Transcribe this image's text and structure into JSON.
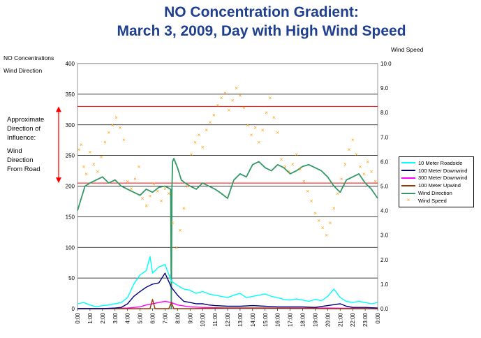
{
  "header": {
    "title_line1": "NO Concentration Gradient:",
    "title_line2": "March 3, 2009, Day with High Wind Speed"
  },
  "axes": {
    "left_title_line1": "NO Concentrations",
    "left_title_line2": "Wind Direction",
    "right_title": "Wind Speed"
  },
  "annotation": {
    "line1": "Approximate",
    "line2": "Direction of",
    "line3": "Influence:",
    "line4": "Wind",
    "line5": "Direction",
    "line6": "From Road"
  },
  "colors": {
    "title": "#1f3f8f",
    "roadside10": "#00ffff",
    "downwind100": "#000080",
    "downwind300": "#ff00ff",
    "upwind100": "#993300",
    "wind_direction": "#339966",
    "wind_speed": "#ff9900",
    "reference_line": "#ff0000",
    "grid": "#000000"
  },
  "chart_data": {
    "type": "line",
    "title": "NO Concentration Gradient: March 3, 2009, Day with High Wind Speed",
    "ylabel_left": "NO Concentrations / Wind Direction",
    "ylabel_right": "Wind Speed",
    "ylim_left": [
      0,
      400
    ],
    "ylim_right": [
      0,
      10
    ],
    "yticks_left": [
      "0",
      "50",
      "100",
      "150",
      "200",
      "250",
      "300",
      "350",
      "400"
    ],
    "yticks_right": [
      "0.0",
      "1.0",
      "2.0",
      "3.0",
      "4.0",
      "5.0",
      "6.0",
      "7.0",
      "8.0",
      "9.0",
      "10.0"
    ],
    "xticks": [
      "0:00",
      "1:00",
      "2:00",
      "3:00",
      "4:00",
      "5:00",
      "6:00",
      "7:00",
      "8:00",
      "9:00",
      "10:00",
      "11:00",
      "12:00",
      "13:00",
      "14:00",
      "15:00",
      "16:00",
      "17:00",
      "18:00",
      "19:00",
      "20:00",
      "21:00",
      "22:00",
      "23:00",
      "0:00"
    ],
    "grid": "horizontal",
    "legend_position": "right",
    "reference_lines": [
      {
        "axis": "left",
        "value": 330,
        "color": "#ff0000"
      },
      {
        "axis": "left",
        "value": 205,
        "color": "#ff0000"
      }
    ],
    "influence_range": [
      205,
      330
    ],
    "series": [
      {
        "name": "10 Meter Roadside",
        "axis": "left",
        "style": "line",
        "color": "#00ffff",
        "x": [
          0,
          0.5,
          1,
          1.5,
          2,
          2.5,
          3,
          3.5,
          4,
          4.5,
          5,
          5.5,
          5.8,
          6,
          6.5,
          7,
          7.5,
          8,
          8.5,
          9,
          9.5,
          10,
          10.5,
          11,
          11.5,
          12,
          12.5,
          13,
          13.5,
          14,
          14.5,
          15,
          15.5,
          16,
          16.5,
          17,
          17.5,
          18,
          18.5,
          19,
          19.5,
          20,
          20.5,
          21,
          21.5,
          22,
          22.5,
          23,
          23.5,
          24
        ],
        "values": [
          8,
          10,
          6,
          3,
          5,
          6,
          8,
          10,
          18,
          40,
          55,
          62,
          85,
          58,
          68,
          72,
          45,
          38,
          32,
          30,
          25,
          28,
          24,
          22,
          20,
          18,
          22,
          25,
          18,
          20,
          22,
          24,
          20,
          18,
          15,
          14,
          16,
          14,
          12,
          15,
          13,
          20,
          32,
          18,
          12,
          10,
          12,
          10,
          8,
          10
        ]
      },
      {
        "name": "100 Meter Downwind",
        "axis": "left",
        "style": "line",
        "color": "#000080",
        "x": [
          0,
          1,
          2,
          3,
          3.5,
          4,
          4.5,
          5,
          5.5,
          6,
          6.5,
          7,
          7.5,
          8,
          8.5,
          9,
          9.5,
          10,
          10.5,
          11,
          12,
          13,
          14,
          15,
          16,
          17,
          18,
          19,
          20,
          21,
          21.5,
          22,
          23,
          24
        ],
        "values": [
          0,
          0,
          0,
          1,
          2,
          8,
          20,
          28,
          35,
          40,
          42,
          58,
          35,
          22,
          12,
          10,
          8,
          8,
          6,
          5,
          4,
          4,
          5,
          4,
          3,
          3,
          3,
          2,
          5,
          8,
          4,
          2,
          2,
          1
        ]
      },
      {
        "name": "300 Meter Downwind",
        "axis": "left",
        "style": "line",
        "color": "#ff00ff",
        "x": [
          0,
          2,
          4,
          5,
          5.5,
          6,
          6.5,
          7,
          7.5,
          8,
          9,
          10,
          12,
          16,
          20,
          24
        ],
        "values": [
          0,
          0,
          1,
          3,
          6,
          8,
          10,
          12,
          10,
          6,
          3,
          2,
          1,
          1,
          1,
          0
        ]
      },
      {
        "name": "100 Meter Upwind",
        "axis": "left",
        "style": "line",
        "color": "#993300",
        "x": [
          0,
          5,
          5.8,
          6,
          6.2,
          7,
          7.3,
          7.5,
          7.7,
          8,
          9,
          12,
          15,
          20,
          24
        ],
        "values": [
          0,
          0,
          0,
          15,
          0,
          0,
          0,
          10,
          0,
          0,
          0,
          1,
          1,
          0,
          0
        ]
      },
      {
        "name": "Wind Direction",
        "axis": "left",
        "style": "line",
        "color": "#339966",
        "x": [
          0,
          0.3,
          0.6,
          1,
          1.5,
          2,
          2.5,
          3,
          3.5,
          4,
          4.5,
          5,
          5.5,
          6,
          6.5,
          7,
          7.45,
          7.5,
          7.55,
          7.6,
          7.7,
          8,
          8.3,
          8.6,
          9,
          9.5,
          10,
          10.5,
          11,
          11.5,
          12,
          12.5,
          13,
          13.5,
          14,
          14.5,
          15,
          15.5,
          16,
          16.5,
          17,
          17.5,
          18,
          18.5,
          19,
          19.5,
          20,
          20.5,
          21,
          21.5,
          22,
          22.5,
          23,
          23.5,
          24
        ],
        "values": [
          160,
          180,
          200,
          205,
          210,
          215,
          205,
          210,
          200,
          195,
          190,
          185,
          195,
          190,
          198,
          200,
          195,
          0,
          195,
          240,
          245,
          230,
          210,
          205,
          200,
          195,
          205,
          200,
          195,
          188,
          180,
          210,
          220,
          215,
          235,
          240,
          230,
          225,
          235,
          230,
          220,
          225,
          232,
          235,
          230,
          225,
          215,
          200,
          190,
          210,
          215,
          220,
          205,
          195,
          180
        ]
      },
      {
        "name": "Wind Speed",
        "axis": "right",
        "style": "scatter",
        "color": "#ff9900",
        "x": [
          0.1,
          0.3,
          0.5,
          0.7,
          1.0,
          1.3,
          1.6,
          1.9,
          2.2,
          2.5,
          2.8,
          3.1,
          3.4,
          3.7,
          4.0,
          4.3,
          4.6,
          4.9,
          5.2,
          5.5,
          5.8,
          6.1,
          6.4,
          6.7,
          7.0,
          7.3,
          7.6,
          7.9,
          8.2,
          8.5,
          8.8,
          9.1,
          9.4,
          9.7,
          10.0,
          10.3,
          10.6,
          10.9,
          11.2,
          11.5,
          11.8,
          12.1,
          12.4,
          12.7,
          13.0,
          13.3,
          13.6,
          13.9,
          14.2,
          14.5,
          14.8,
          15.1,
          15.4,
          15.7,
          16.0,
          16.3,
          16.6,
          16.9,
          17.2,
          17.5,
          17.8,
          18.1,
          18.4,
          18.7,
          19.0,
          19.3,
          19.6,
          19.9,
          20.2,
          20.5,
          20.8,
          21.1,
          21.4,
          21.7,
          22.0,
          22.3,
          22.6,
          22.9,
          23.2,
          23.5,
          23.8
        ],
        "values": [
          6.5,
          6.7,
          5.8,
          5.5,
          6.4,
          5.9,
          5.6,
          6.2,
          6.8,
          7.2,
          7.5,
          7.8,
          7.4,
          6.9,
          5.2,
          4.9,
          5.3,
          5.8,
          4.5,
          4.2,
          4.6,
          5.1,
          4.8,
          4.4,
          4.9,
          4.7,
          3.5,
          2.5,
          3.2,
          4.1,
          5.0,
          6.3,
          6.8,
          7.1,
          6.6,
          7.3,
          7.6,
          7.9,
          8.3,
          8.6,
          8.8,
          8.1,
          8.5,
          9.0,
          8.7,
          8.2,
          7.5,
          7.1,
          7.4,
          6.8,
          7.3,
          8.0,
          8.6,
          7.8,
          7.2,
          6.1,
          5.8,
          5.6,
          5.9,
          6.3,
          5.7,
          5.2,
          4.8,
          4.4,
          3.9,
          3.6,
          3.3,
          3.0,
          3.5,
          4.1,
          4.7,
          5.3,
          5.9,
          6.5,
          6.9,
          6.3,
          5.8,
          5.5,
          6.0,
          5.6,
          5.2
        ]
      }
    ]
  }
}
